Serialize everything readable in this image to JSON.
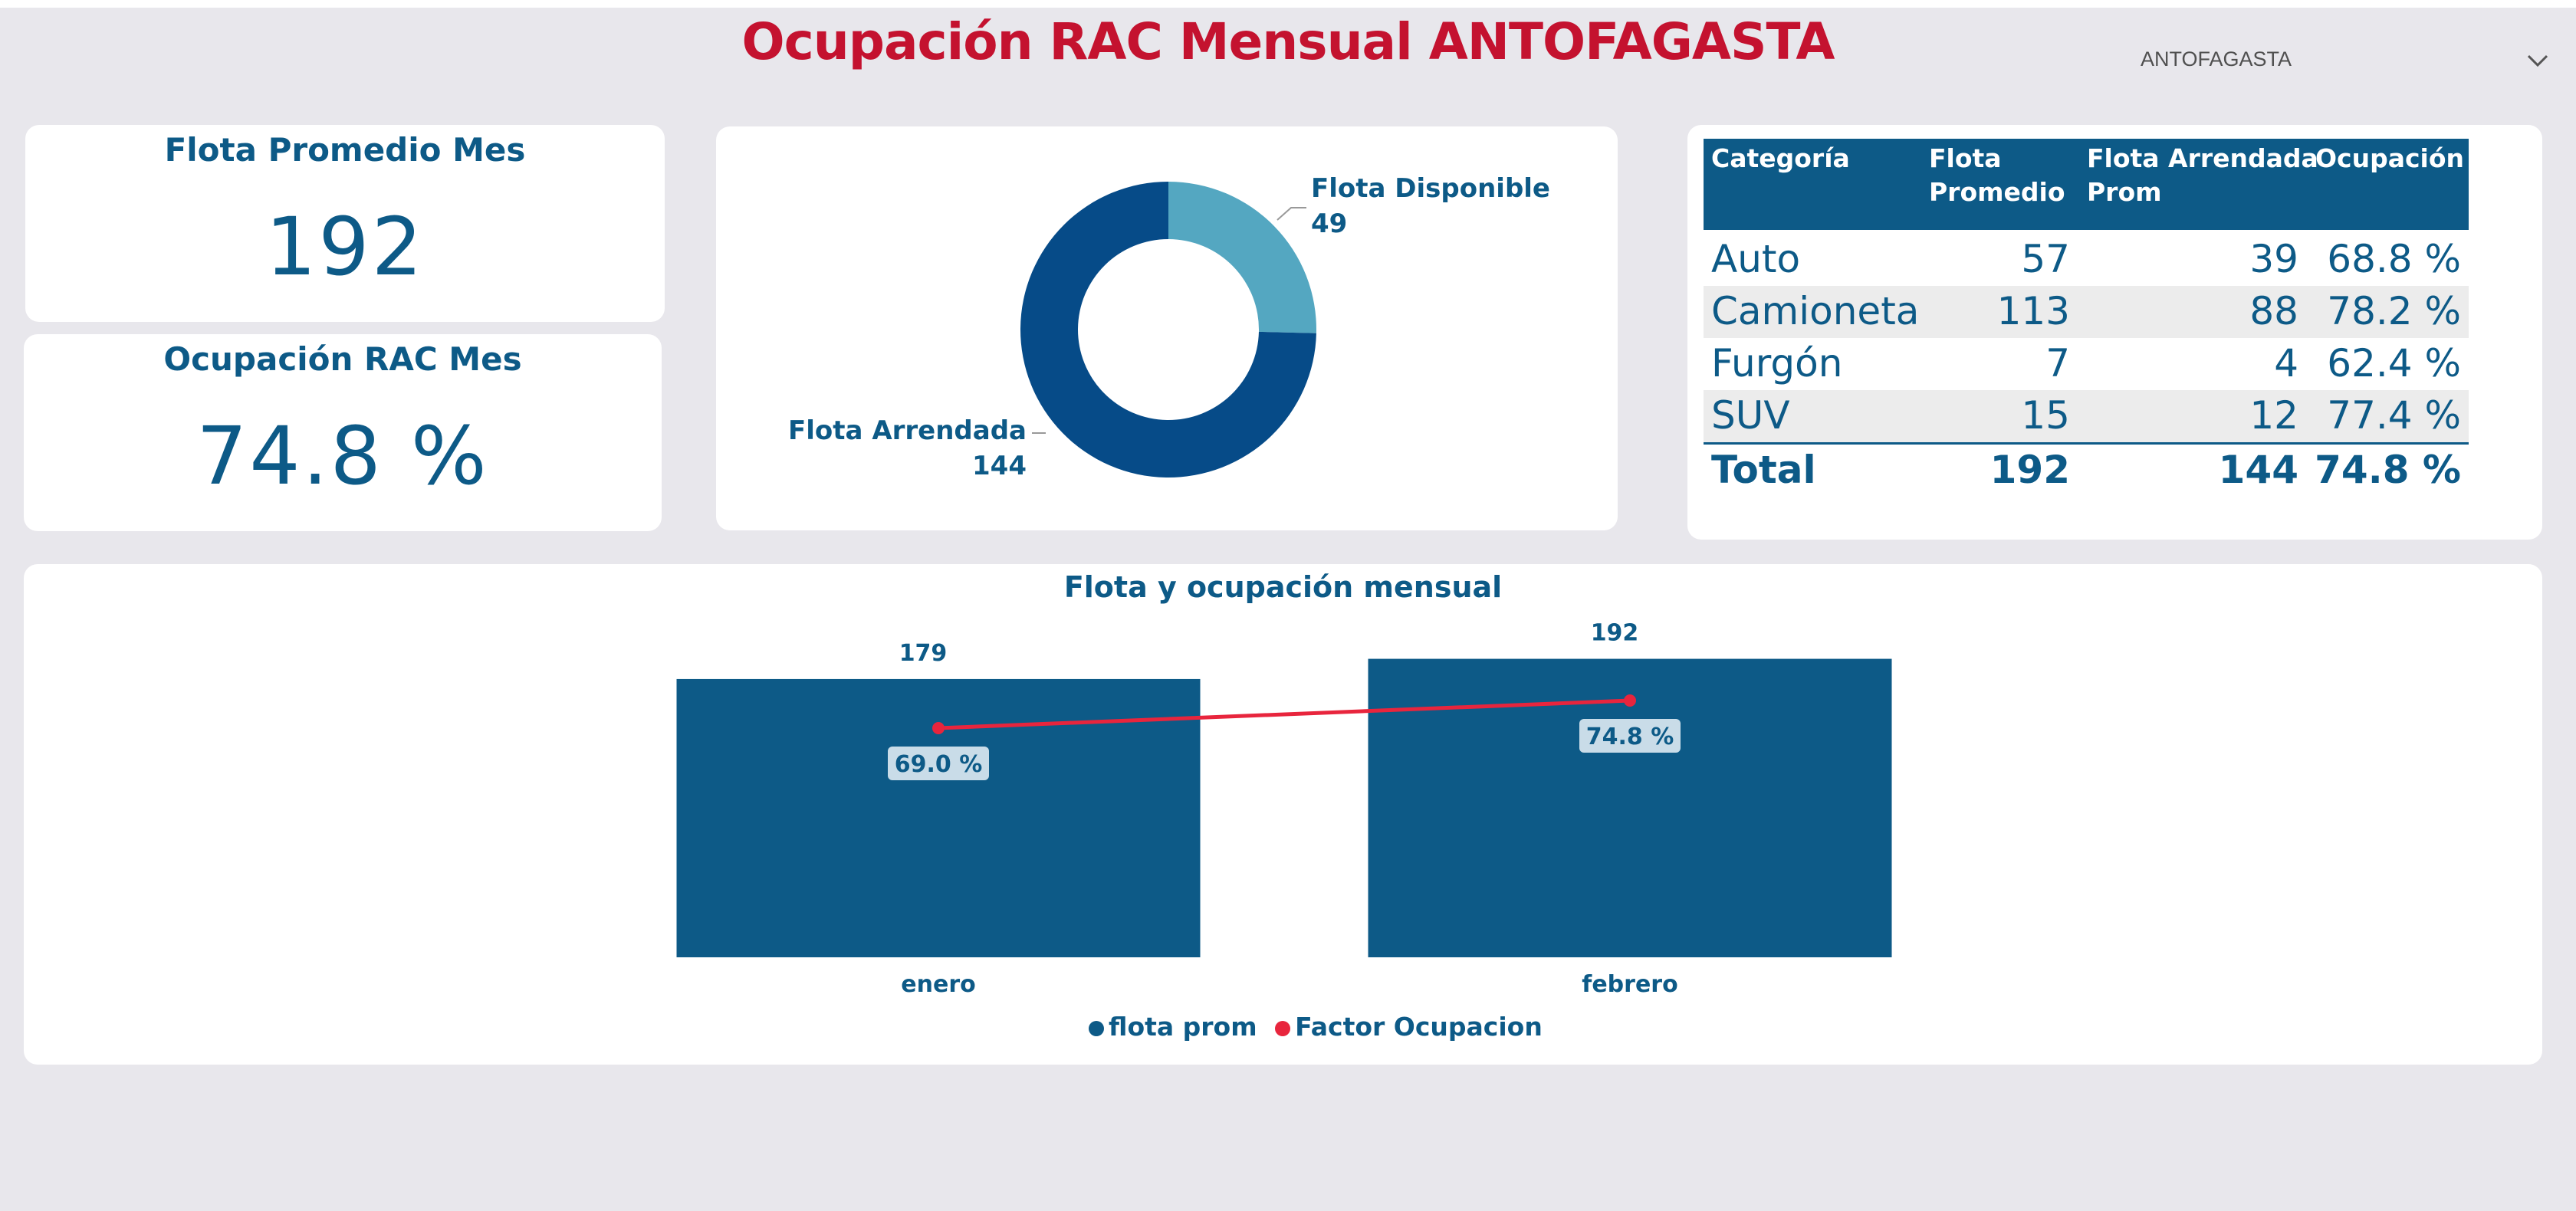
{
  "title": "Ocupación RAC Mensual ANTOFAGASTA",
  "slicer": {
    "value": "ANTOFAGASTA",
    "icon": "chevron-down-icon"
  },
  "kpis": {
    "flota": {
      "title": "Flota Promedio Mes",
      "value": "192"
    },
    "ocupacion": {
      "title": "Ocupación RAC Mes",
      "value": "74.8 %"
    }
  },
  "colors": {
    "title": "#c4122f",
    "primary": "#0d5a87",
    "donut_dark": "#064b88",
    "donut_light": "#54a7c1",
    "line": "#e8253d"
  },
  "donut": {
    "type": "pie",
    "slices": [
      {
        "label": "Flota Disponible",
        "value": 49,
        "display": "49"
      },
      {
        "label": "Flota Arrendada",
        "value": 144,
        "display": "144"
      }
    ]
  },
  "table": {
    "headers": [
      "Categoría",
      "Flota Promedio",
      "Flota Arrendada Prom",
      "Ocupación"
    ],
    "header_lines": [
      [
        "Categoría"
      ],
      [
        "Flota",
        "Promedio"
      ],
      [
        "Flota Arrendada",
        "Prom"
      ],
      [
        "Ocupación"
      ]
    ],
    "rows": [
      [
        "Auto",
        "57",
        "39",
        "68.8 %"
      ],
      [
        "Camioneta",
        "113",
        "88",
        "78.2 %"
      ],
      [
        "Furgón",
        "7",
        "4",
        "62.4 %"
      ],
      [
        "SUV",
        "15",
        "12",
        "77.4 %"
      ]
    ],
    "total": [
      "Total",
      "192",
      "144",
      "74.8 %"
    ]
  },
  "chart_data": {
    "type": "bar",
    "title": "Flota y ocupación mensual",
    "categories": [
      "enero",
      "febrero"
    ],
    "series": [
      {
        "name": "flota prom",
        "type": "bar",
        "values": [
          179,
          192
        ],
        "labels": [
          "179",
          "192"
        ]
      },
      {
        "name": "Factor Ocupacion",
        "type": "line",
        "values": [
          69.0,
          74.8
        ],
        "labels": [
          "69.0 %",
          "74.8 %"
        ]
      }
    ],
    "legend": "bottom-center",
    "grid": false
  }
}
